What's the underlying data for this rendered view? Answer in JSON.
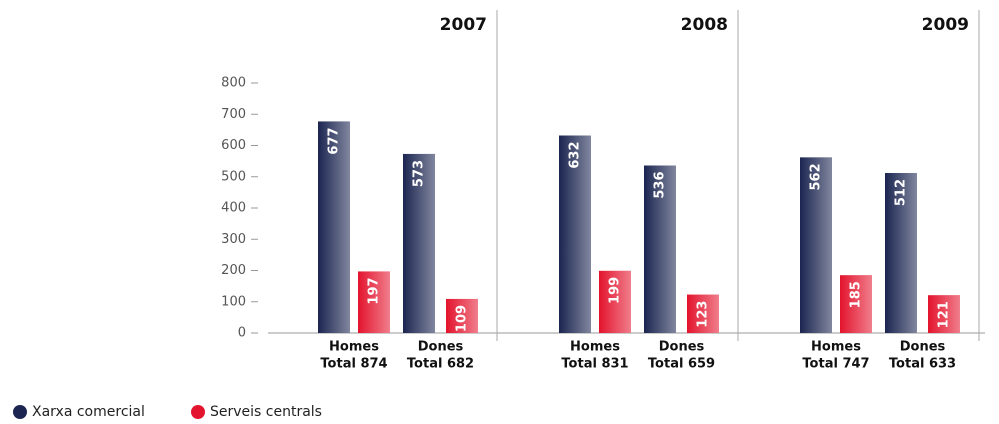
{
  "chart_data": {
    "type": "bar",
    "ylim": [
      0,
      800
    ],
    "yticks": [
      0,
      100,
      200,
      300,
      400,
      500,
      600,
      700,
      800
    ],
    "series": [
      {
        "name": "Xarxa comercial",
        "color": "#1b2550"
      },
      {
        "name": "Serveis centrals",
        "color": "#e3142d"
      }
    ],
    "panels": [
      {
        "title": "2007",
        "categories": [
          "Homes",
          "Dones"
        ],
        "totals": [
          "Total 874",
          "Total 682"
        ],
        "values": [
          [
            677,
            573
          ],
          [
            197,
            109
          ]
        ]
      },
      {
        "title": "2008",
        "categories": [
          "Homes",
          "Dones"
        ],
        "totals": [
          "Total 831",
          "Total 659"
        ],
        "values": [
          [
            632,
            536
          ],
          [
            199,
            123
          ]
        ]
      },
      {
        "title": "2009",
        "categories": [
          "Homes",
          "Dones"
        ],
        "totals": [
          "Total 747",
          "Total 633"
        ],
        "values": [
          [
            562,
            512
          ],
          [
            185,
            121
          ]
        ]
      }
    ]
  }
}
